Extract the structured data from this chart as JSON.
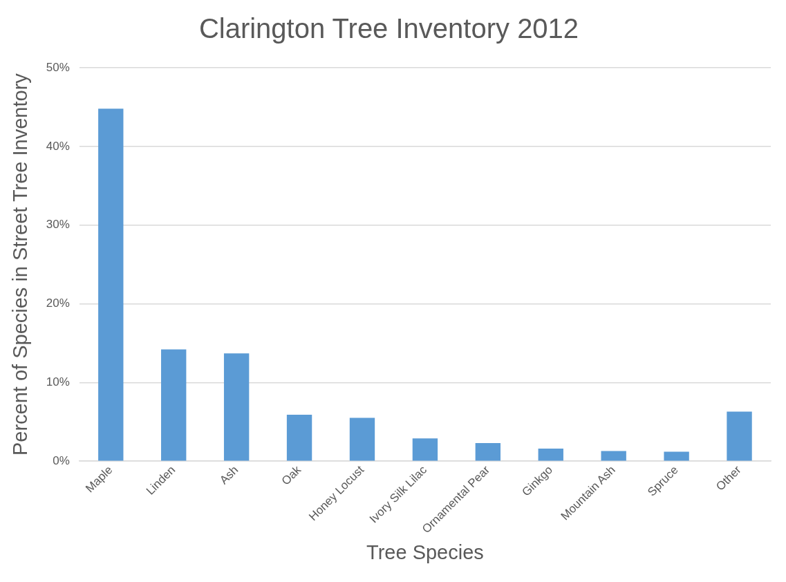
{
  "chart_data": {
    "type": "bar",
    "title": "Clarington Tree Inventory 2012",
    "xlabel": "Tree Species",
    "ylabel": "Percent of Species in Street Tree Inventory",
    "categories": [
      "Maple",
      "Linden",
      "Ash",
      "Oak",
      "Honey Locust",
      "Ivory Silk Lilac",
      "Ornamental Pear",
      "Ginkgo",
      "Mountain Ash",
      "Spruce",
      "Other"
    ],
    "values": [
      44.8,
      14.2,
      13.7,
      5.9,
      5.5,
      2.9,
      2.3,
      1.6,
      1.3,
      1.2,
      6.3
    ],
    "color": "#5b9bd5",
    "ylim": [
      0,
      50
    ],
    "yticks": [
      {
        "value": 0,
        "label": "0%"
      },
      {
        "value": 10,
        "label": "10%"
      },
      {
        "value": 20,
        "label": "20%"
      },
      {
        "value": 30,
        "label": "30%"
      },
      {
        "value": 40,
        "label": "40%"
      },
      {
        "value": 50,
        "label": "50%"
      }
    ],
    "grid": "y"
  }
}
